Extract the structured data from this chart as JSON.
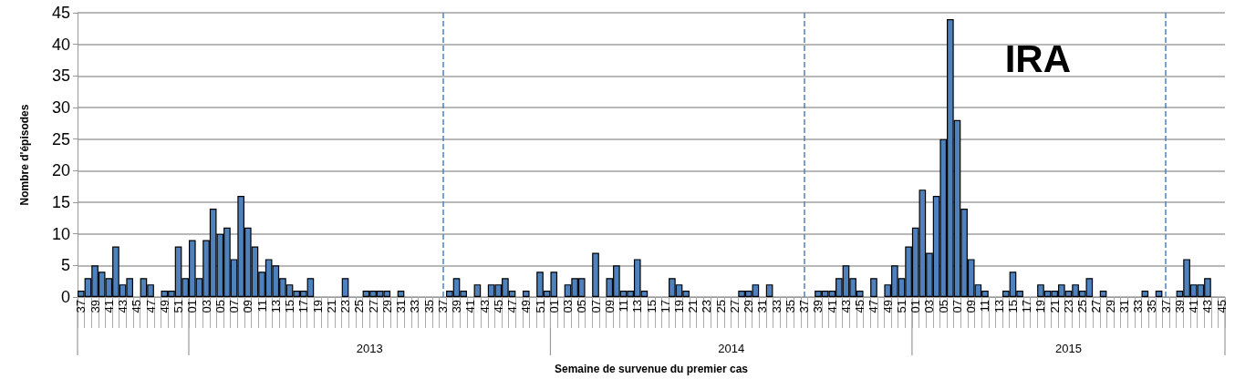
{
  "chart_data": {
    "type": "bar",
    "title": "IRA",
    "xlabel": "Semaine de survenue du premier cas",
    "ylabel": "Nombre d'épisodes",
    "categories": [
      "37",
      null,
      "39",
      null,
      "41",
      null,
      "43",
      null,
      "45",
      null,
      "47",
      null,
      "49",
      null,
      "51",
      null,
      "01",
      null,
      "03",
      null,
      "05",
      null,
      "07",
      null,
      "09",
      null,
      "11",
      null,
      "13",
      null,
      "15",
      null,
      "17",
      null,
      "19",
      null,
      "21",
      null,
      "23",
      null,
      "25",
      null,
      "27",
      null,
      "29",
      null,
      "31",
      null,
      "33",
      null,
      "35",
      null,
      "37",
      null,
      "39",
      null,
      "41",
      null,
      "43",
      null,
      "45",
      null,
      "47",
      null,
      "49",
      null,
      "51",
      null,
      "01",
      null,
      "03",
      null,
      "05",
      null,
      "07",
      null,
      "09",
      null,
      "11",
      null,
      "13",
      null,
      "15",
      null,
      "17",
      null,
      "19",
      null,
      "21",
      null,
      "23",
      null,
      "25",
      null,
      "27",
      null,
      "29",
      null,
      "31",
      null,
      "33",
      null,
      "35",
      null,
      "37",
      null,
      "39",
      null,
      "41",
      null,
      "43",
      null,
      "45",
      null,
      "47",
      null,
      "49",
      null,
      "51",
      null,
      "01",
      null,
      "03",
      null,
      "05",
      null,
      "07",
      null,
      "09",
      null,
      "11",
      null,
      "13",
      null,
      "15",
      null,
      "17",
      null,
      "19",
      null,
      "21",
      null,
      "23",
      null,
      "25",
      null,
      "27",
      null,
      "29",
      null,
      "31",
      null,
      "33",
      null,
      "35",
      null,
      "37",
      null,
      "39",
      null,
      "41",
      null,
      "43",
      null,
      "45"
    ],
    "values": [
      1,
      3,
      5,
      4,
      3,
      8,
      2,
      3,
      0,
      3,
      2,
      0,
      1,
      1,
      8,
      3,
      9,
      3,
      9,
      14,
      10,
      11,
      6,
      16,
      11,
      8,
      4,
      6,
      5,
      3,
      2,
      1,
      1,
      3,
      0,
      0,
      0,
      0,
      3,
      0,
      0,
      1,
      1,
      1,
      1,
      0,
      1,
      0,
      0,
      0,
      0,
      0,
      0,
      1,
      3,
      1,
      0,
      2,
      0,
      2,
      2,
      3,
      1,
      0,
      1,
      0,
      4,
      1,
      4,
      0,
      2,
      3,
      3,
      0,
      7,
      0,
      3,
      5,
      1,
      1,
      6,
      1,
      0,
      0,
      0,
      3,
      2,
      1,
      0,
      0,
      0,
      0,
      0,
      0,
      0,
      1,
      1,
      2,
      0,
      2,
      0,
      0,
      0,
      0,
      0,
      0,
      1,
      1,
      1,
      3,
      5,
      3,
      1,
      0,
      3,
      0,
      2,
      5,
      3,
      8,
      11,
      17,
      7,
      16,
      25,
      44,
      28,
      14,
      6,
      2,
      1,
      0,
      0,
      1,
      4,
      1,
      0,
      0,
      2,
      1,
      1,
      2,
      1,
      2,
      1,
      3,
      0,
      1,
      0,
      0,
      0,
      0,
      0,
      1,
      0,
      1,
      0,
      0,
      1,
      6,
      2,
      2,
      3,
      0,
      0
    ],
    "color": "#4f81bd",
    "ylim": [
      0,
      45
    ],
    "yticks": [
      0,
      5,
      10,
      15,
      20,
      25,
      30,
      35,
      40,
      45
    ],
    "grid": "y",
    "annotations": [
      "2013",
      "2014",
      "2015"
    ]
  }
}
